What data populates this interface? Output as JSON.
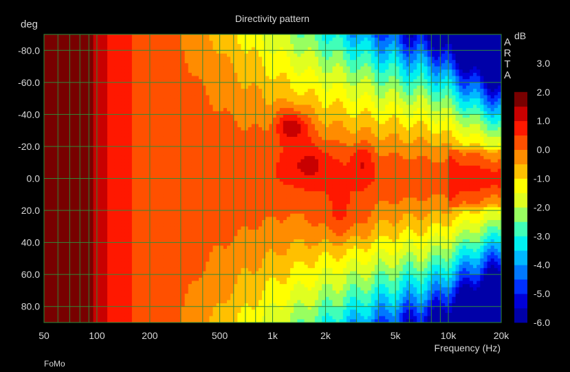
{
  "chart_data": {
    "type": "heatmap",
    "title": "Directivity pattern",
    "xlabel": "Frequency (Hz)",
    "ylabel": "deg",
    "x_scale": "log",
    "xlim": [
      50,
      20000
    ],
    "ylim": [
      -90,
      90
    ],
    "x_ticks": [
      {
        "value": 50,
        "label": "50"
      },
      {
        "value": 100,
        "label": "100"
      },
      {
        "value": 200,
        "label": "200"
      },
      {
        "value": 500,
        "label": "500"
      },
      {
        "value": 1000,
        "label": "1k"
      },
      {
        "value": 2000,
        "label": "2k"
      },
      {
        "value": 5000,
        "label": "5k"
      },
      {
        "value": 10000,
        "label": "10k"
      },
      {
        "value": 20000,
        "label": "20k"
      }
    ],
    "x_grid": [
      50,
      60,
      70,
      80,
      90,
      100,
      200,
      300,
      400,
      500,
      600,
      700,
      800,
      900,
      1000,
      2000,
      3000,
      4000,
      5000,
      6000,
      7000,
      8000,
      9000,
      10000,
      20000
    ],
    "y_ticks": [
      {
        "value": -80,
        "label": "-80.0"
      },
      {
        "value": -60,
        "label": "-60.0"
      },
      {
        "value": -40,
        "label": "-40.0"
      },
      {
        "value": -20,
        "label": "-20.0"
      },
      {
        "value": 0,
        "label": "0.0"
      },
      {
        "value": 20,
        "label": "20.0"
      },
      {
        "value": 40,
        "label": "40.0"
      },
      {
        "value": 60,
        "label": "60.0"
      },
      {
        "value": 80,
        "label": "80.0"
      }
    ],
    "colorbar": {
      "unit": "dB",
      "range": [
        -6,
        4
      ],
      "step": 0.5,
      "labels": [
        {
          "value": 3,
          "label": "3.0"
        },
        {
          "value": 2,
          "label": "2.0"
        },
        {
          "value": 1,
          "label": "1.0"
        },
        {
          "value": 0,
          "label": "0.0"
        },
        {
          "value": -1,
          "label": "-1.0"
        },
        {
          "value": -2,
          "label": "-2.0"
        },
        {
          "value": -3,
          "label": "-3.0"
        },
        {
          "value": -4,
          "label": "-4.0"
        },
        {
          "value": -5,
          "label": "-5.0"
        },
        {
          "value": -6,
          "label": "-6.0"
        }
      ],
      "colors": [
        "#0000a8",
        "#0000d8",
        "#0030ff",
        "#0078ff",
        "#00b8ff",
        "#00f0f0",
        "#40ffb8",
        "#98ff60",
        "#e0ff20",
        "#ffff00",
        "#ffc000",
        "#ff8c00",
        "#ff5000",
        "#ff1800",
        "#c80000",
        "#780000"
      ]
    },
    "grid": true,
    "watermark": "ARTA",
    "footer": "FoMo",
    "grid_color": "#2e8b3a",
    "background": "#000000"
  }
}
